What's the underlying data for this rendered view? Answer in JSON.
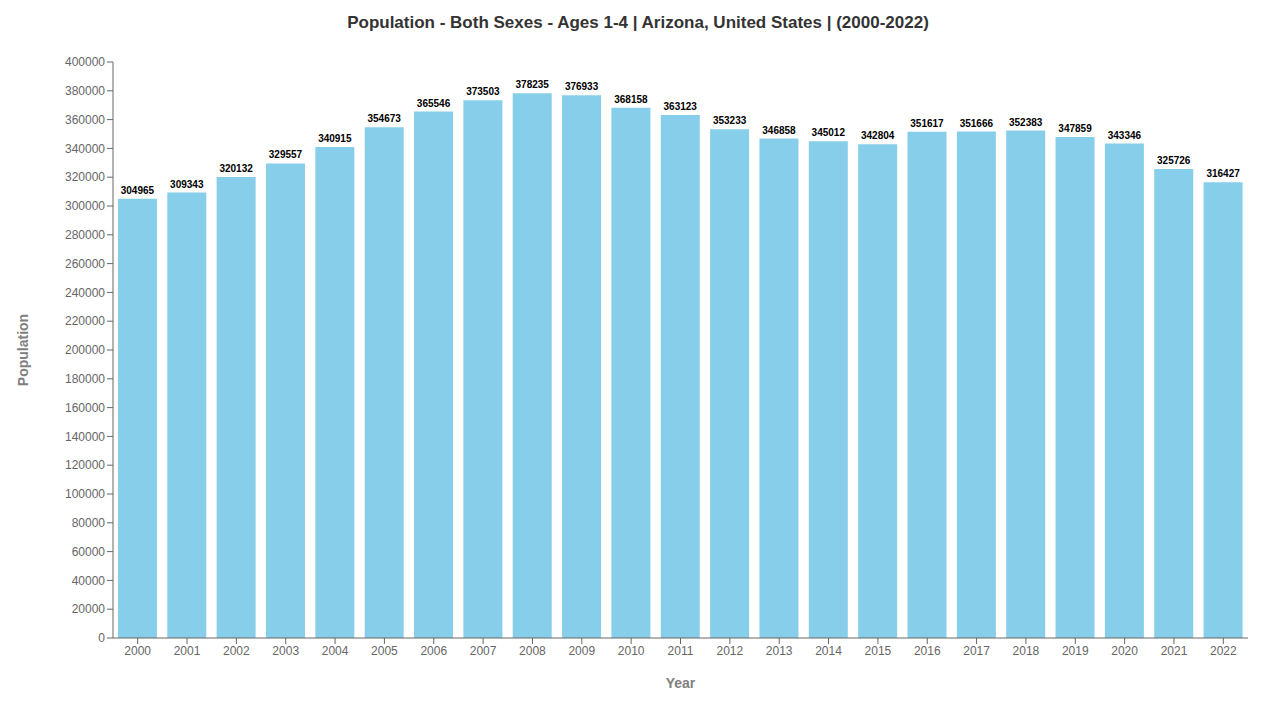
{
  "chart_data": {
    "type": "bar",
    "title": "Population - Both Sexes - Ages 1-4 | Arizona, United States |  (2000-2022)",
    "xlabel": "Year",
    "ylabel": "Population",
    "categories": [
      "2000",
      "2001",
      "2002",
      "2003",
      "2004",
      "2005",
      "2006",
      "2007",
      "2008",
      "2009",
      "2010",
      "2011",
      "2012",
      "2013",
      "2014",
      "2015",
      "2016",
      "2017",
      "2018",
      "2019",
      "2020",
      "2021",
      "2022"
    ],
    "values": [
      304965,
      309343,
      320132,
      329557,
      340915,
      354673,
      365546,
      373503,
      378235,
      376933,
      368158,
      363123,
      353233,
      346858,
      345012,
      342804,
      351617,
      351666,
      352383,
      347859,
      343346,
      325726,
      316427
    ],
    "color": "#87CEEB",
    "ylim": [
      0,
      400000
    ],
    "yticks": [
      0,
      20000,
      40000,
      60000,
      80000,
      100000,
      120000,
      140000,
      160000,
      180000,
      200000,
      220000,
      240000,
      260000,
      280000,
      300000,
      320000,
      340000,
      360000,
      380000,
      400000
    ],
    "grid": false,
    "data_labels": true
  }
}
